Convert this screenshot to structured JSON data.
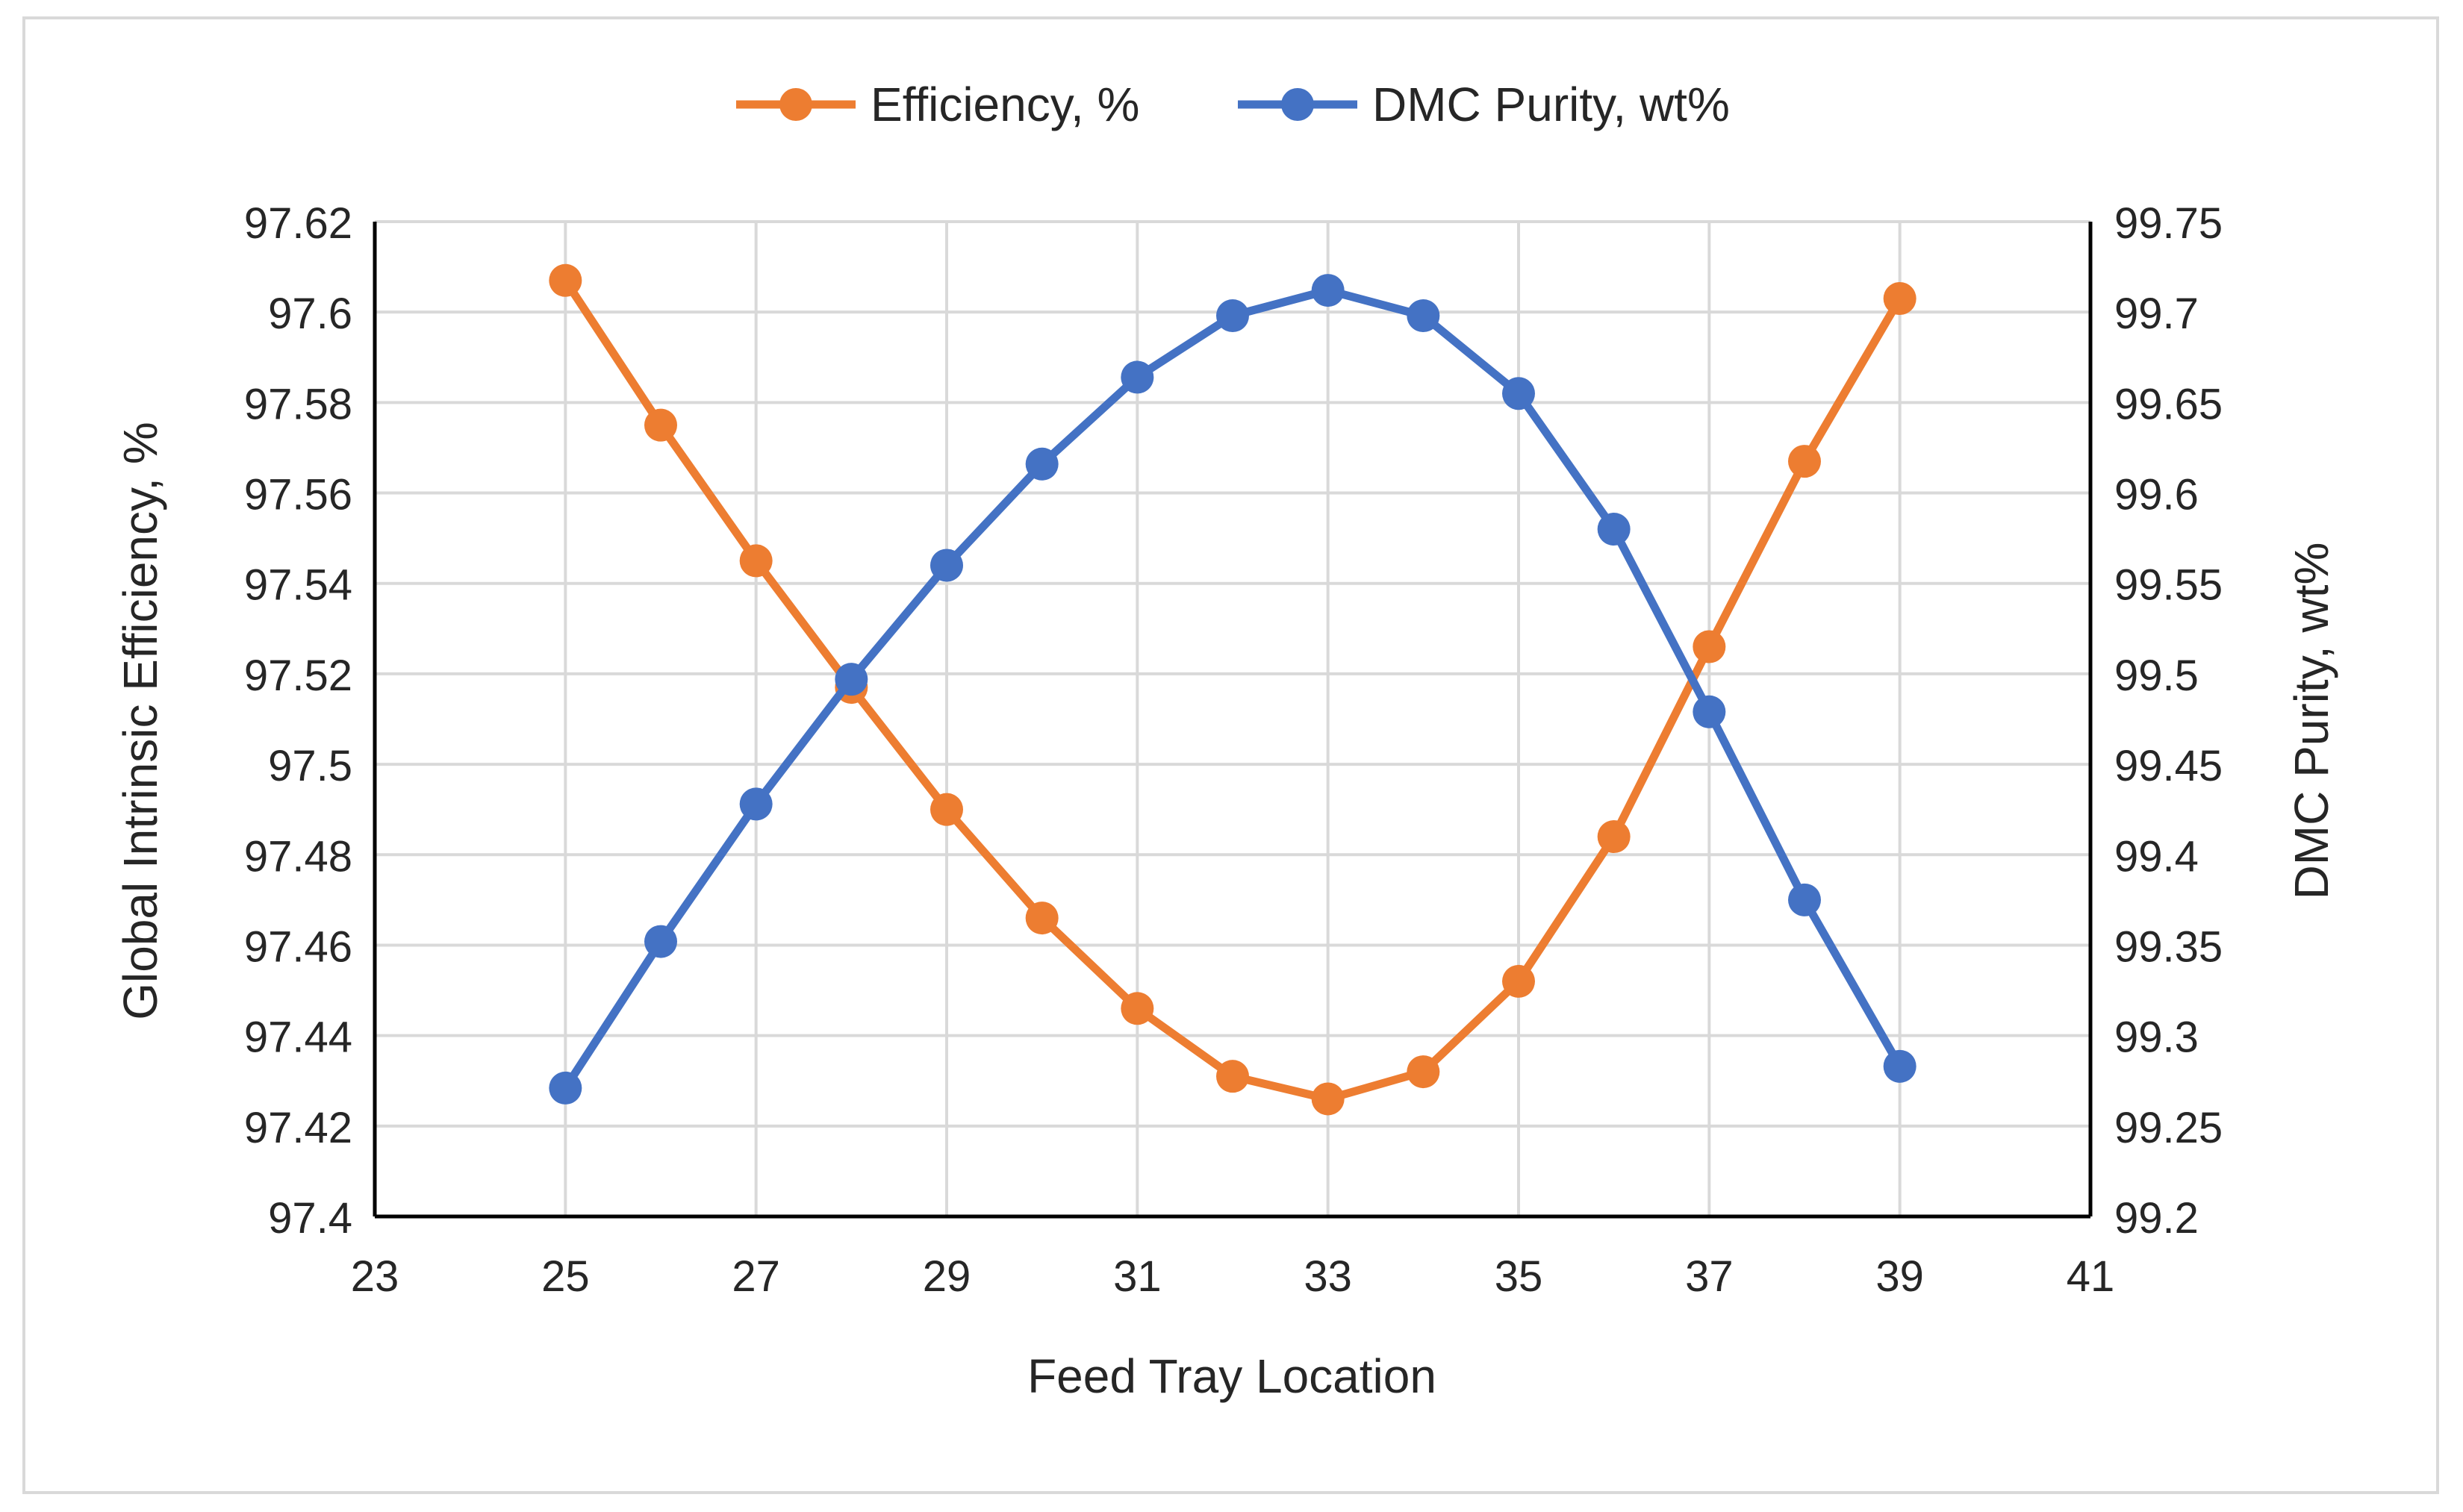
{
  "chart_data": {
    "type": "line",
    "title": "",
    "xlabel": "Feed Tray Location",
    "ylabel": "Global Intrinsic Efficiency, %",
    "y2label": "DMC Purity, wt%",
    "xlim": [
      23,
      41
    ],
    "ylim": [
      97.4,
      97.62
    ],
    "y2lim": [
      99.2,
      99.75
    ],
    "xticks": [
      "23",
      "25",
      "27",
      "29",
      "31",
      "33",
      "35",
      "37",
      "39",
      "41"
    ],
    "yticks": [
      "97.4",
      "97.42",
      "97.44",
      "97.46",
      "97.48",
      "97.5",
      "97.52",
      "97.54",
      "97.56",
      "97.58",
      "97.6",
      "97.62"
    ],
    "y2ticks": [
      "99.2",
      "99.25",
      "99.3",
      "99.35",
      "99.4",
      "99.45",
      "99.5",
      "99.55",
      "99.6",
      "99.65",
      "99.7",
      "99.75"
    ],
    "grid": true,
    "legend_position": "top",
    "x": [
      25,
      26,
      27,
      28,
      29,
      30,
      31,
      32,
      33,
      34,
      35,
      36,
      37,
      38,
      39
    ],
    "series": [
      {
        "name": "Efficiency, %",
        "axis": "left",
        "color": "#ED7D31",
        "values": [
          97.607,
          97.575,
          97.545,
          97.517,
          97.49,
          97.466,
          97.446,
          97.431,
          97.426,
          97.432,
          97.452,
          97.484,
          97.526,
          97.567,
          97.603
        ]
      },
      {
        "name": "DMC Purity, wt%",
        "axis": "right",
        "color": "#4472C4",
        "values": [
          99.271,
          99.352,
          99.428,
          99.497,
          99.56,
          99.616,
          99.664,
          99.698,
          99.712,
          99.698,
          99.655,
          99.58,
          99.479,
          99.375,
          99.283
        ]
      }
    ]
  }
}
